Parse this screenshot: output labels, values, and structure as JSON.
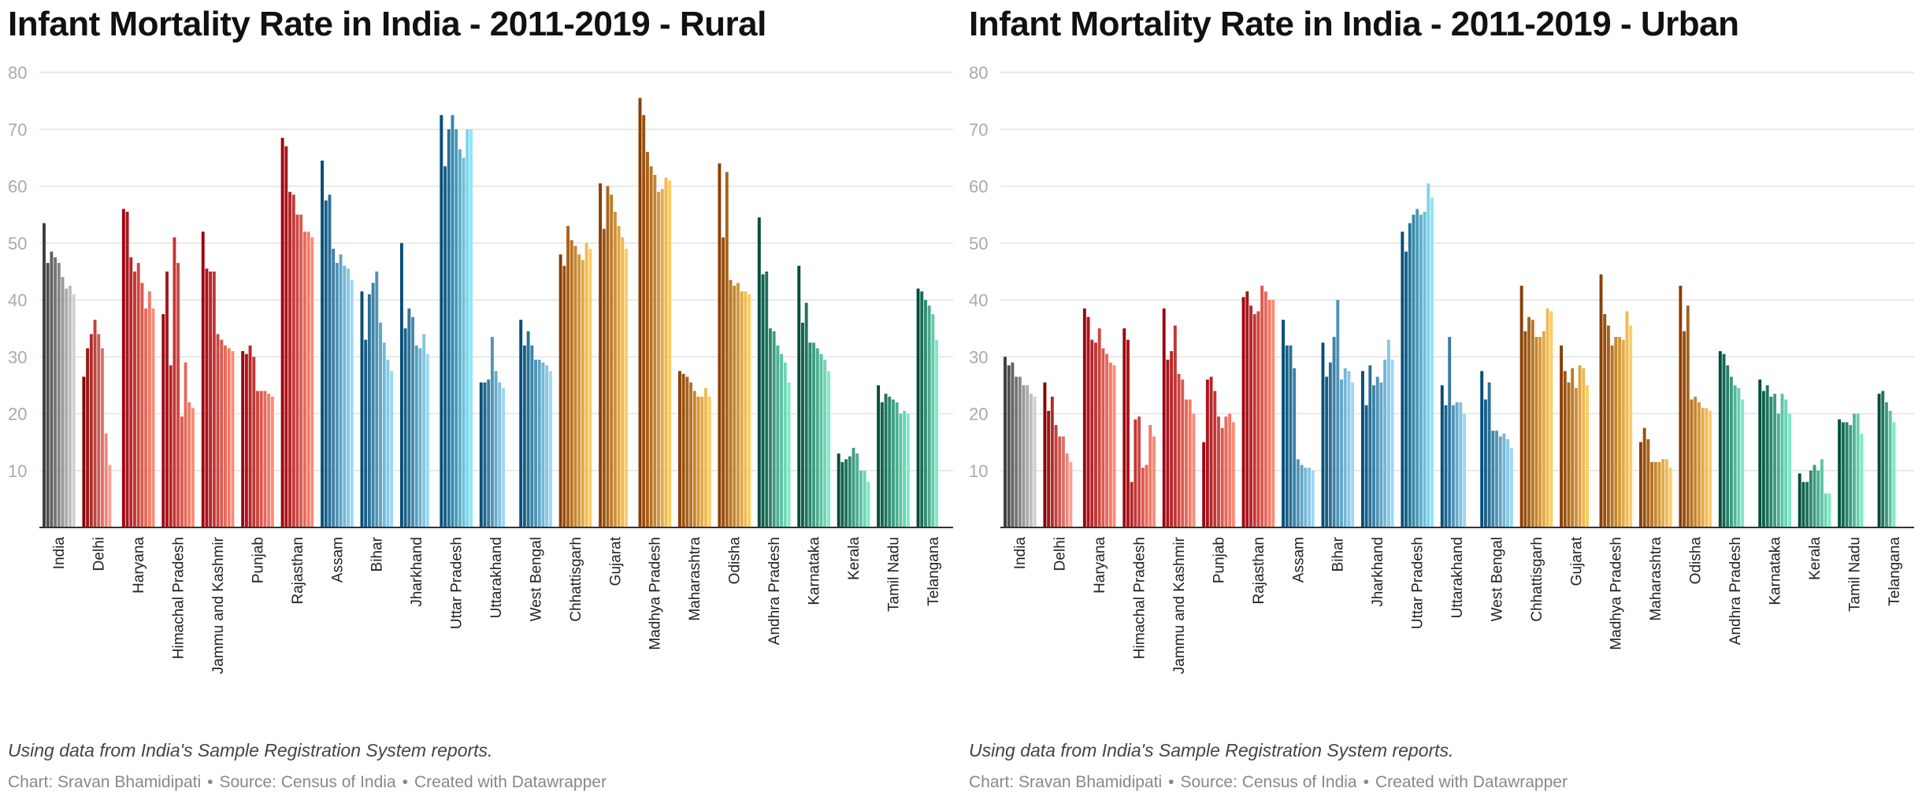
{
  "chart_data": [
    {
      "type": "bar",
      "title": "Infant Mortality Rate in India - 2011-2019 - Rural",
      "notes": "Using data from India's Sample Registration System reports.",
      "credit": {
        "chart": "Chart: Sravan Bhamidipati",
        "source": "Source: Census of India",
        "tool": "Created with Datawrapper"
      },
      "ylim": [
        0,
        80
      ],
      "yticks": [
        10,
        20,
        30,
        40,
        50,
        60,
        70,
        80
      ],
      "grid": true,
      "categories": [
        "India",
        "Delhi",
        "Haryana",
        "Himachal Pradesh",
        "Jammu and Kashmir",
        "Punjab",
        "Rajasthan",
        "Assam",
        "Bihar",
        "Jharkhand",
        "Uttar Pradesh",
        "Uttarakhand",
        "West Bengal",
        "Chhattisgarh",
        "Gujarat",
        "Madhya Pradesh",
        "Maharashtra",
        "Odisha",
        "Andhra Pradesh",
        "Karnataka",
        "Kerala",
        "Tamil Nadu",
        "Telangana"
      ],
      "values": [
        [
          53.5,
          46.5,
          48.5,
          47.5,
          46.5,
          44,
          42,
          42.5,
          41
        ],
        [
          26.5,
          31.5,
          34,
          36.5,
          34,
          31.5,
          16.5,
          11
        ],
        [
          56,
          55.5,
          47.5,
          45,
          46.5,
          43,
          38.5,
          41.5,
          38.5
        ],
        [
          37.5,
          45,
          28.5,
          51,
          46.5,
          19.5,
          29,
          22,
          21
        ],
        [
          52,
          45.5,
          45,
          45,
          34,
          33,
          32,
          31.5,
          31
        ],
        [
          31,
          30.5,
          32,
          30,
          24,
          24,
          24,
          23.5,
          23
        ],
        [
          68.5,
          67,
          59,
          58.5,
          55,
          55,
          52,
          52,
          51
        ],
        [
          64.5,
          57.5,
          58.5,
          49,
          46.5,
          48,
          46,
          45.5,
          43.5
        ],
        [
          41.5,
          33,
          41,
          43,
          45,
          36,
          32.5,
          29.5,
          27.5
        ],
        [
          50,
          35,
          38.5,
          37,
          32,
          31.5,
          34,
          30.5
        ],
        [
          72.5,
          63.5,
          70,
          72.5,
          70,
          66.5,
          65,
          70,
          70
        ],
        [
          25.5,
          25.5,
          26,
          33.5,
          27.5,
          25.5,
          24.5
        ],
        [
          36.5,
          32,
          34.5,
          32,
          29.5,
          29.5,
          29,
          28.5,
          27.5
        ],
        [
          48,
          46,
          53,
          50.5,
          49.5,
          48,
          47,
          50,
          49
        ],
        [
          60.5,
          52.5,
          60,
          58.5,
          55.5,
          53,
          51,
          49
        ],
        [
          75.5,
          72.5,
          66,
          63.5,
          62,
          59,
          59.5,
          61.5,
          61
        ],
        [
          27.5,
          27,
          26.5,
          25.5,
          24,
          23,
          23,
          24.5,
          23
        ],
        [
          64,
          51,
          62.5,
          43.5,
          42.5,
          43,
          41.5,
          41.5,
          41
        ],
        [
          54.5,
          44.5,
          45,
          35,
          34.5,
          32,
          30.5,
          29,
          25.5
        ],
        [
          46,
          36,
          39.5,
          32.5,
          32.5,
          31.5,
          30.5,
          29.5,
          27.5
        ],
        [
          13,
          11.5,
          12,
          12.5,
          14,
          13,
          10,
          10,
          8
        ],
        [
          25,
          22,
          23.5,
          23,
          22.5,
          22,
          20,
          20.5,
          20
        ],
        [
          42,
          41.5,
          40,
          39,
          37.5,
          33
        ]
      ],
      "palettes": [
        [
          "#3d3d3d",
          "#cfcfcf"
        ],
        [
          "#8a0000",
          "#ff9e93"
        ],
        [
          "#9e0410",
          "#ff8a73"
        ],
        [
          "#9e0410",
          "#ff8a73"
        ],
        [
          "#9e0410",
          "#ff8a73"
        ],
        [
          "#9e0410",
          "#ff8a73"
        ],
        [
          "#9e0410",
          "#ff8a73"
        ],
        [
          "#054e78",
          "#9ad8f5"
        ],
        [
          "#054e78",
          "#9ad8f5"
        ],
        [
          "#054e78",
          "#9ad8f5"
        ],
        [
          "#054e78",
          "#8de6fa"
        ],
        [
          "#054e78",
          "#9ad8f5"
        ],
        [
          "#054e78",
          "#9ad8f5"
        ],
        [
          "#8a3e03",
          "#ffcc5e"
        ],
        [
          "#8a3e03",
          "#ffcc5e"
        ],
        [
          "#8a3e03",
          "#ffcc5e"
        ],
        [
          "#8a3e03",
          "#ffcc5e"
        ],
        [
          "#8a3e03",
          "#ffcc5e"
        ],
        [
          "#004d3c",
          "#7ceac5"
        ],
        [
          "#004d3c",
          "#7ceac5"
        ],
        [
          "#004d3c",
          "#7ceac5"
        ],
        [
          "#004d3c",
          "#7ceac5"
        ],
        [
          "#004d3c",
          "#7ceac5"
        ]
      ]
    },
    {
      "type": "bar",
      "title": "Infant Mortality Rate in India - 2011-2019 - Urban",
      "notes": "Using data from India's Sample Registration System reports.",
      "credit": {
        "chart": "Chart: Sravan Bhamidipati",
        "source": "Source: Census of India",
        "tool": "Created with Datawrapper"
      },
      "ylim": [
        0,
        80
      ],
      "yticks": [
        10,
        20,
        30,
        40,
        50,
        60,
        70,
        80
      ],
      "grid": true,
      "categories": [
        "India",
        "Delhi",
        "Haryana",
        "Himachal Pradesh",
        "Jammu and Kashmir",
        "Punjab",
        "Rajasthan",
        "Assam",
        "Bihar",
        "Jharkhand",
        "Uttar Pradesh",
        "Uttarakhand",
        "West Bengal",
        "Chhattisgarh",
        "Gujarat",
        "Madhya Pradesh",
        "Maharashtra",
        "Odisha",
        "Andhra Pradesh",
        "Karnataka",
        "Kerala",
        "Tamil Nadu",
        "Telangana"
      ],
      "values": [
        [
          30,
          28.5,
          29,
          26.5,
          26.5,
          25,
          25,
          23.5,
          23
        ],
        [
          25.5,
          20.5,
          23,
          18,
          16,
          16,
          13,
          11.5
        ],
        [
          38.5,
          37,
          33,
          32.5,
          35,
          31.5,
          30.5,
          29,
          28.5
        ],
        [
          35,
          33,
          8,
          19,
          19.5,
          10.5,
          11,
          18,
          16
        ],
        [
          38.5,
          29.5,
          31,
          35.5,
          27,
          26,
          22.5,
          22.5,
          20
        ],
        [
          15,
          26,
          26.5,
          24,
          19.5,
          17.5,
          19.5,
          20,
          18.5
        ],
        [
          40.5,
          41.5,
          39,
          37.5,
          38,
          42.5,
          41.5,
          40,
          40
        ],
        [
          36.5,
          32,
          32,
          28,
          12,
          11,
          10.5,
          10.5,
          10
        ],
        [
          32.5,
          26.5,
          29,
          33.5,
          40,
          26,
          28,
          27.5,
          25.5
        ],
        [
          27.5,
          21.5,
          28.5,
          25,
          26.5,
          25.5,
          29.5,
          33,
          29.5
        ],
        [
          52,
          48.5,
          53.5,
          55,
          56,
          55,
          55.5,
          60.5,
          58
        ],
        [
          25,
          21.5,
          33.5,
          21.5,
          22,
          22,
          20
        ],
        [
          27.5,
          22.5,
          25.5,
          17,
          17,
          16,
          16.5,
          15.5,
          14
        ],
        [
          42.5,
          34.5,
          37,
          36.5,
          33.5,
          33.5,
          34.5,
          38.5,
          38
        ],
        [
          32,
          27.5,
          25.5,
          28,
          24.5,
          28.5,
          28,
          25
        ],
        [
          44.5,
          37.5,
          35.5,
          32,
          33.5,
          33.5,
          33,
          38,
          35.5
        ],
        [
          15,
          17.5,
          15.5,
          11.5,
          11.5,
          11.5,
          12,
          12,
          10.5
        ],
        [
          42.5,
          34.5,
          39,
          22.5,
          23,
          22,
          21,
          21,
          20.5
        ],
        [
          31,
          30.5,
          28.5,
          26.5,
          25,
          24.5,
          22.5
        ],
        [
          26,
          24,
          25,
          23,
          23.5,
          20,
          23.5,
          22.5,
          20
        ],
        [
          9.5,
          8,
          8,
          10,
          11,
          10,
          12,
          6,
          6
        ],
        [
          19,
          18.5,
          18.5,
          18,
          20,
          20,
          16.5
        ],
        [
          23.5,
          24,
          22,
          20.5,
          18.5
        ]
      ],
      "palettes": [
        [
          "#3d3d3d",
          "#cfcfcf"
        ],
        [
          "#8a0000",
          "#ff9e93"
        ],
        [
          "#9e0410",
          "#ff8a73"
        ],
        [
          "#9e0410",
          "#ff8a73"
        ],
        [
          "#9e0410",
          "#ff8a73"
        ],
        [
          "#9e0410",
          "#ff8a73"
        ],
        [
          "#9e0410",
          "#ff8a73"
        ],
        [
          "#054e78",
          "#9ad8f5"
        ],
        [
          "#054e78",
          "#9ad8f5"
        ],
        [
          "#054e78",
          "#9ad8f5"
        ],
        [
          "#054e78",
          "#8de6fa"
        ],
        [
          "#054e78",
          "#9ad8f5"
        ],
        [
          "#054e78",
          "#9ad8f5"
        ],
        [
          "#8a3e03",
          "#ffcc5e"
        ],
        [
          "#8a3e03",
          "#ffcc5e"
        ],
        [
          "#8a3e03",
          "#ffcc5e"
        ],
        [
          "#8a3e03",
          "#ffcc5e"
        ],
        [
          "#8a3e03",
          "#ffcc5e"
        ],
        [
          "#004d3c",
          "#7ceac5"
        ],
        [
          "#004d3c",
          "#7ceac5"
        ],
        [
          "#004d3c",
          "#7ceac5"
        ],
        [
          "#004d3c",
          "#7ceac5"
        ],
        [
          "#004d3c",
          "#7ceac5"
        ]
      ]
    }
  ]
}
